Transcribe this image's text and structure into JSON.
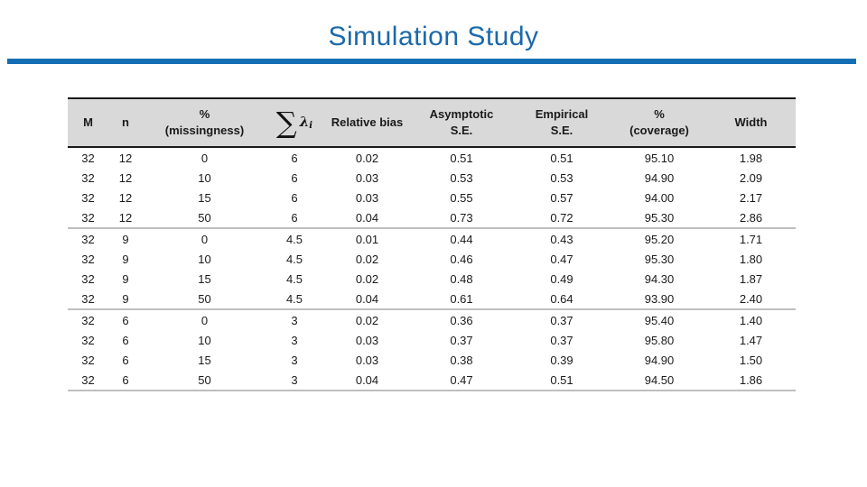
{
  "slide": {
    "title": "Simulation Study",
    "title_color": "#1c69aa",
    "rule_color": "#146eb4"
  },
  "table": {
    "header_bg": "#d9d9d9",
    "border_color": "#1a1a1a",
    "separator_color": "#bfbfbf",
    "equation": {
      "sigma": "∑",
      "lambda": "λ",
      "sub": "i"
    },
    "headers": [
      {
        "label": "M"
      },
      {
        "label": "n"
      },
      {
        "line1": "%",
        "line2": "(missingness)"
      },
      {
        "label": "sum-lambda-equation"
      },
      {
        "label": "Relative bias"
      },
      {
        "line1": "Asymptotic",
        "line2": "S.E."
      },
      {
        "line1": "Empirical",
        "line2": "S.E."
      },
      {
        "line1": "%",
        "line2": "(coverage)"
      },
      {
        "label": "Width"
      }
    ],
    "group_size": 4,
    "rows": [
      [
        "32",
        "12",
        "0",
        "6",
        "0.02",
        "0.51",
        "0.51",
        "95.10",
        "1.98"
      ],
      [
        "32",
        "12",
        "10",
        "6",
        "0.03",
        "0.53",
        "0.53",
        "94.90",
        "2.09"
      ],
      [
        "32",
        "12",
        "15",
        "6",
        "0.03",
        "0.55",
        "0.57",
        "94.00",
        "2.17"
      ],
      [
        "32",
        "12",
        "50",
        "6",
        "0.04",
        "0.73",
        "0.72",
        "95.30",
        "2.86"
      ],
      [
        "32",
        "9",
        "0",
        "4.5",
        "0.01",
        "0.44",
        "0.43",
        "95.20",
        "1.71"
      ],
      [
        "32",
        "9",
        "10",
        "4.5",
        "0.02",
        "0.46",
        "0.47",
        "95.30",
        "1.80"
      ],
      [
        "32",
        "9",
        "15",
        "4.5",
        "0.02",
        "0.48",
        "0.49",
        "94.30",
        "1.87"
      ],
      [
        "32",
        "9",
        "50",
        "4.5",
        "0.04",
        "0.61",
        "0.64",
        "93.90",
        "2.40"
      ],
      [
        "32",
        "6",
        "0",
        "3",
        "0.02",
        "0.36",
        "0.37",
        "95.40",
        "1.40"
      ],
      [
        "32",
        "6",
        "10",
        "3",
        "0.03",
        "0.37",
        "0.37",
        "95.80",
        "1.47"
      ],
      [
        "32",
        "6",
        "15",
        "3",
        "0.03",
        "0.38",
        "0.39",
        "94.90",
        "1.50"
      ],
      [
        "32",
        "6",
        "50",
        "3",
        "0.04",
        "0.47",
        "0.51",
        "94.50",
        "1.86"
      ]
    ]
  }
}
